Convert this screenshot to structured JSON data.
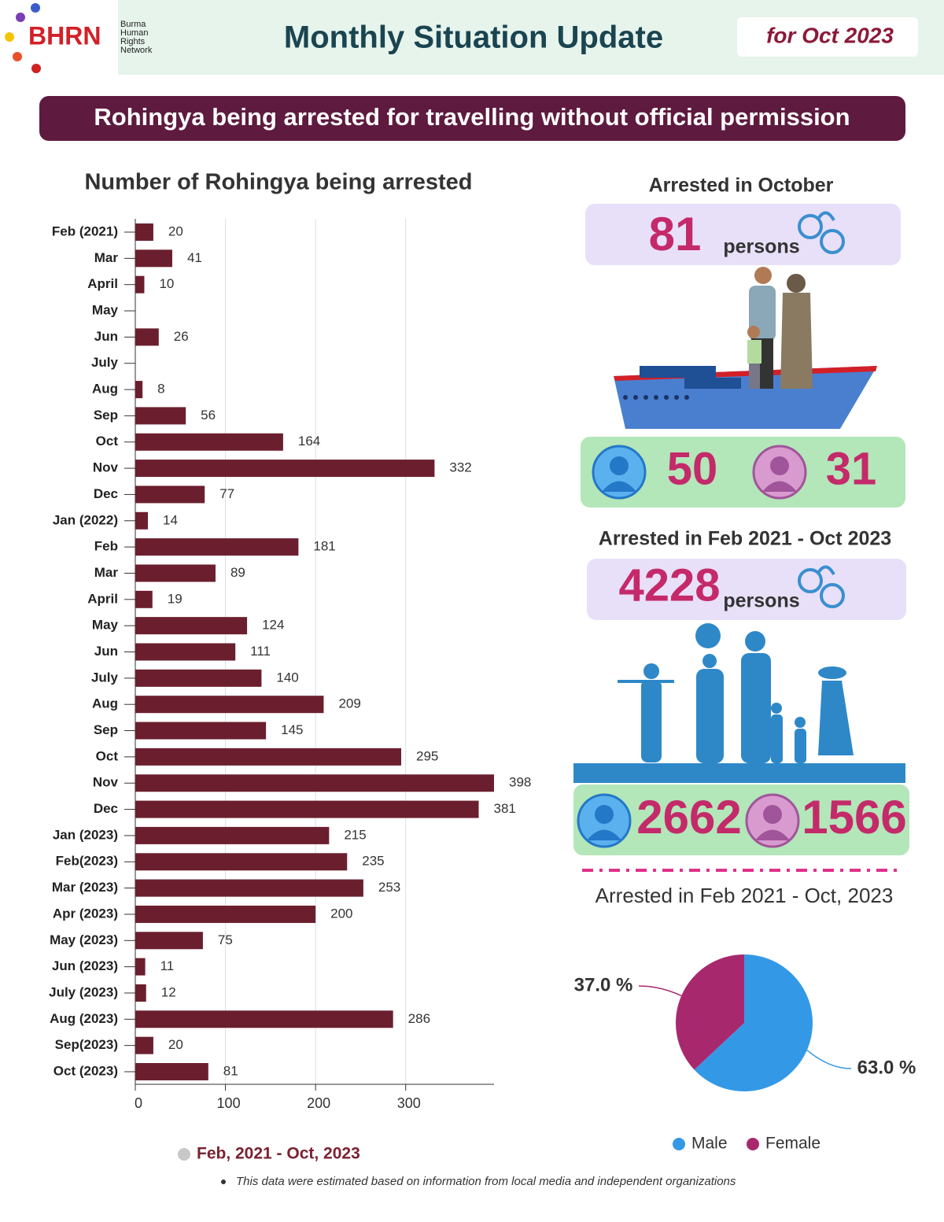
{
  "header": {
    "logo": "BHRN",
    "org_lines": [
      "Burma",
      "Human",
      "Rights",
      "Network"
    ],
    "title": "Monthly Situation Update",
    "period": "for Oct 2023"
  },
  "banner": "Rohingya being arrested for travelling without official permission",
  "chart_data": [
    {
      "type": "bar",
      "orientation": "horizontal",
      "title": "Number of Rohingya being arrested",
      "categories": [
        "Feb (2021)",
        "Mar",
        "April",
        "May",
        "Jun",
        "July",
        "Aug",
        "Sep",
        "Oct",
        "Nov",
        "Dec",
        "Jan (2022)",
        "Feb",
        "Mar",
        "April",
        "May",
        "Jun",
        "July",
        "Aug",
        "Sep",
        "Oct",
        "Nov",
        "Dec",
        "Jan (2023)",
        "Feb(2023)",
        "Mar (2023)",
        "Apr (2023)",
        "May (2023)",
        "Jun (2023)",
        "July (2023)",
        "Aug (2023)",
        "Sep(2023)",
        "Oct (2023)"
      ],
      "series": [
        {
          "name": "Feb, 2021 - Oct, 2023",
          "color": "#6b1f2e",
          "values": [
            20,
            41,
            10,
            null,
            26,
            null,
            8,
            56,
            164,
            332,
            77,
            14,
            181,
            89,
            19,
            124,
            111,
            140,
            209,
            145,
            295,
            398,
            381,
            215,
            235,
            253,
            200,
            75,
            11,
            12,
            286,
            20,
            81
          ]
        }
      ],
      "xlim": [
        0,
        398
      ],
      "xticks": [
        0,
        100,
        200,
        300
      ],
      "grid": true
    },
    {
      "type": "pie",
      "title": "Arrested in Feb 2021 - Oct, 2023",
      "categories": [
        "Male",
        "Female"
      ],
      "values": [
        63.0,
        37.0
      ],
      "value_labels": [
        "63.0 %",
        "37.0 %"
      ],
      "colors": [
        "#3399e6",
        "#a8286e"
      ]
    }
  ],
  "stats": [
    {
      "title": "Arrested in October",
      "total": 81,
      "unit": "persons",
      "male": 50,
      "female": 31
    },
    {
      "title": "Arrested in Feb 2021 - Oct 2023",
      "total": 4228,
      "unit": "persons",
      "male": 2662,
      "female": 1566
    }
  ],
  "footnote": "This data were estimated based on information from local media and independent organizations"
}
